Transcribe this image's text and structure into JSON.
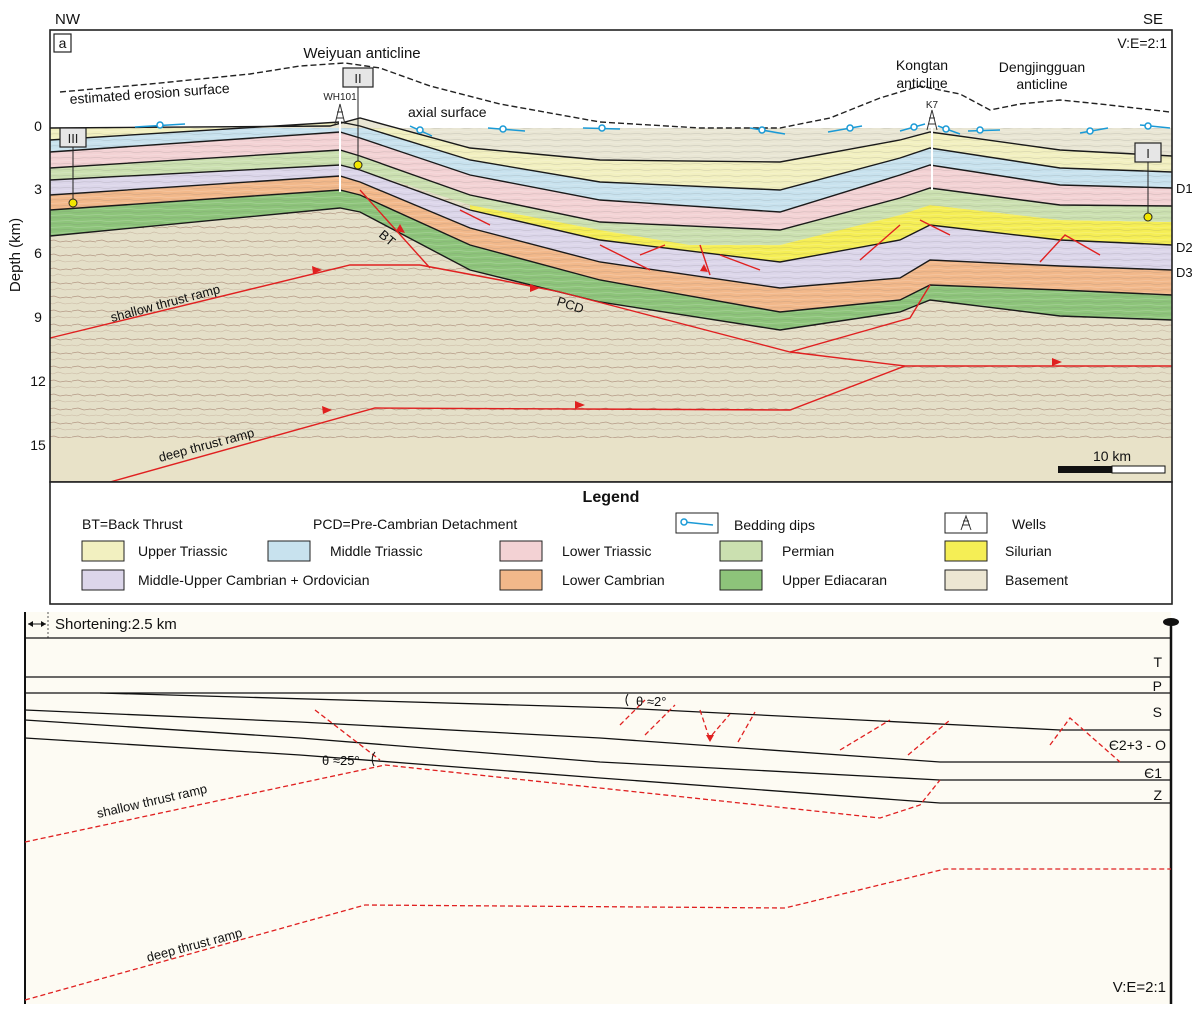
{
  "corners": {
    "nw": "NW",
    "se": "SE"
  },
  "panel_label": "a",
  "ve": "V:E=2:1",
  "ve_bottom": "V:E=2:1",
  "depth_axis": {
    "label": "Depth (km)",
    "ticks": [
      "0",
      "3",
      "6",
      "9",
      "12",
      "15"
    ]
  },
  "structures": {
    "weiyuan": "Weiyuan anticline",
    "kongtan_1": "Kongtan",
    "kongtan_2": "anticline",
    "dengjingguan_1": "Dengjingguan",
    "dengjingguan_2": "anticline",
    "erosion_surface": "estimated erosion surface",
    "axial_surface": "axial surface"
  },
  "wells": {
    "wh101": "WH101",
    "k7": "K7"
  },
  "markers": {
    "m1": "III",
    "m2": "II",
    "m3": "I"
  },
  "horizons": {
    "d1": "D1",
    "d2": "D2",
    "d3": "D3"
  },
  "faults": {
    "bt": "BT",
    "pcd": "PCD",
    "shallow": "shallow thrust ramp",
    "deep": "deep thrust ramp"
  },
  "scale_bar": "10 km",
  "legend": {
    "title": "Legend",
    "bt_def": "BT=Back Thrust",
    "pcd_def": "PCD=Pre-Cambrian Detachment",
    "bedding_dips": "Bedding dips",
    "wells": "Wells",
    "items": [
      {
        "label": "Upper Triassic",
        "color": "#f2f0c0"
      },
      {
        "label": "Middle Triassic",
        "color": "#c8e2ee"
      },
      {
        "label": "Lower Triassic",
        "color": "#f3d2d4"
      },
      {
        "label": "Permian",
        "color": "#cbe0b0"
      },
      {
        "label": "Silurian",
        "color": "#f5ee55"
      },
      {
        "label": "Middle-Upper Cambrian + Ordovician",
        "color": "#dcd6ea"
      },
      {
        "label": "Lower Cambrian",
        "color": "#f2b88a"
      },
      {
        "label": "Upper Ediacaran",
        "color": "#8dc47a"
      },
      {
        "label": "Basement",
        "color": "#ece6d2"
      }
    ]
  },
  "restoration": {
    "shortening": "Shortening:2.5 km",
    "units": {
      "t": "T",
      "p": "P",
      "s": "S",
      "cmo": "Є2+3 - O",
      "c1": "Є1",
      "z": "Z"
    },
    "theta_small": "θ ≈2°",
    "theta_large": "θ ≈25°",
    "shallow": "shallow thrust ramp",
    "deep": "deep thrust ramp"
  },
  "colors": {
    "frame": "#222222",
    "fault": "#e02020",
    "dip": "#1a9ad6",
    "well_dot": "#f2e600",
    "background_restoration": "#fdfbf3",
    "basement_lower": "#e8e2c8"
  }
}
